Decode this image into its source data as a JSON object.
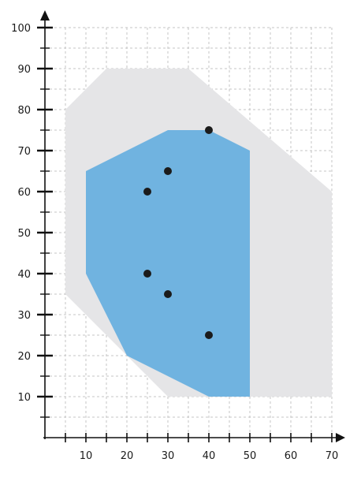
{
  "chart_data": {
    "type": "scatter",
    "title": "",
    "xlabel": "",
    "ylabel": "",
    "xlim": [
      0,
      73
    ],
    "ylim": [
      0,
      100
    ],
    "x_ticks_minor_step": 5,
    "y_ticks_minor_step": 5,
    "x_tick_labels": [
      "10",
      "20",
      "30",
      "40",
      "50",
      "60",
      "70"
    ],
    "y_tick_labels": [
      "10",
      "20",
      "30",
      "40",
      "50",
      "60",
      "70",
      "80",
      "90",
      "100"
    ],
    "grid": true,
    "outer_region": {
      "color": "#e5e5e7",
      "vertices": [
        [
          5,
          80
        ],
        [
          15,
          90
        ],
        [
          35,
          90
        ],
        [
          70,
          60
        ],
        [
          70,
          10
        ],
        [
          30,
          10
        ],
        [
          5,
          35
        ]
      ]
    },
    "inner_region": {
      "color": "#70b3e0",
      "vertices": [
        [
          10,
          65
        ],
        [
          30,
          75
        ],
        [
          40,
          75
        ],
        [
          50,
          70
        ],
        [
          50,
          10
        ],
        [
          40,
          10
        ],
        [
          20,
          20
        ],
        [
          10,
          40
        ]
      ]
    },
    "points": {
      "color": "#1b1b1b",
      "x": [
        40,
        30,
        25,
        25,
        30,
        40
      ],
      "y": [
        75,
        65,
        60,
        40,
        35,
        25
      ]
    }
  }
}
